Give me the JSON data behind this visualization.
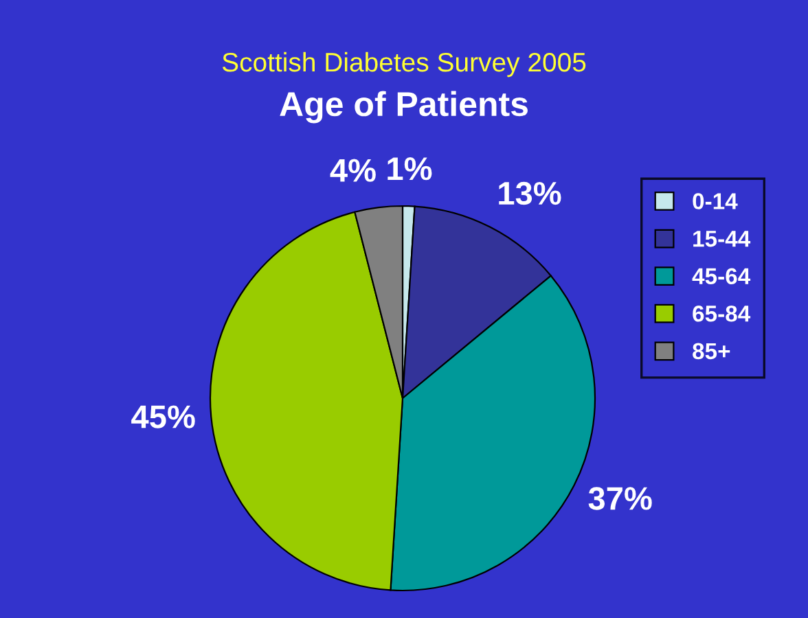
{
  "chart_data": {
    "type": "pie",
    "title": "Scottish Diabetes Survey 2005",
    "subtitle": "Age of Patients",
    "categories": [
      "0-14",
      "15-44",
      "45-64",
      "65-84",
      "85+"
    ],
    "values": [
      1,
      13,
      37,
      45,
      4
    ],
    "colors": [
      "#c6e8ec",
      "#333399",
      "#009999",
      "#99cc00",
      "#808080"
    ],
    "value_labels": [
      "1%",
      "13%",
      "37%",
      "45%",
      "4%"
    ],
    "legend": "right"
  }
}
